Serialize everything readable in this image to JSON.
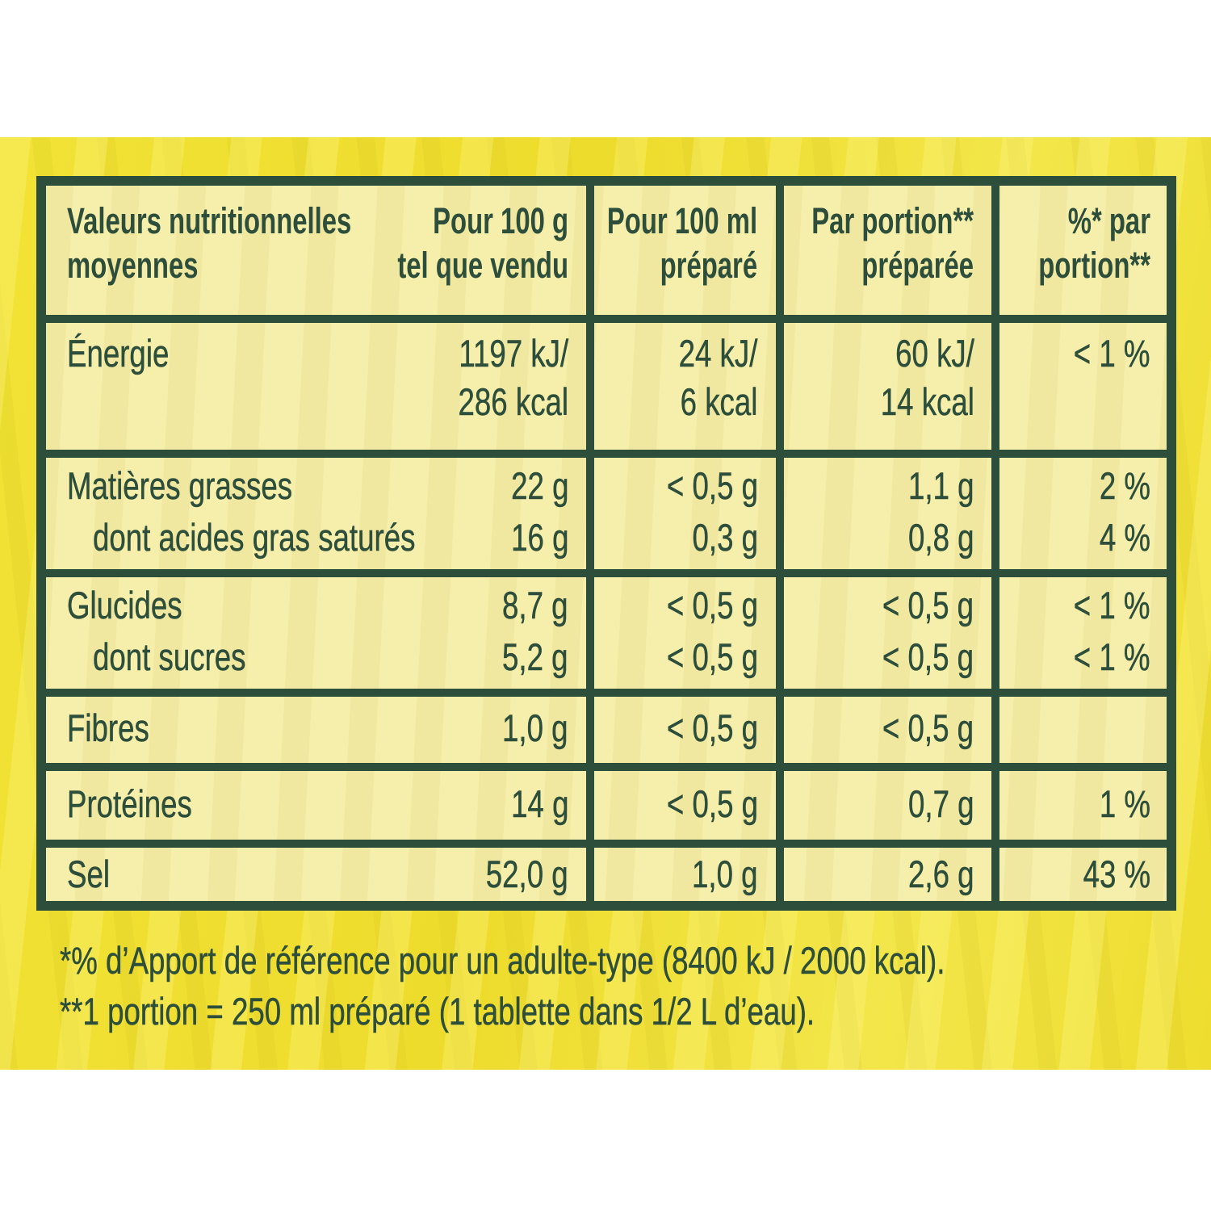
{
  "colors": {
    "band": "#eedd2e",
    "table_bg": "#f6efab",
    "green": "#2d4e3b"
  },
  "table": {
    "header": {
      "title": "Valeurs nutritionnelles\nmoyennes",
      "per100g": "Pour 100 g\ntel que vendu",
      "per100ml": "Pour 100 ml\npréparé",
      "perPortion": "Par portion**\npréparée",
      "pctPortion": "%* par\nportion**"
    },
    "rows": [
      {
        "id": "energie",
        "lines": [
          {
            "label": "Énergie",
            "value": "1197 kJ/"
          },
          {
            "label": "",
            "value": "286 kcal"
          }
        ],
        "per100ml": "24 kJ/\n6 kcal",
        "perPortion": "60 kJ/\n14 kcal",
        "pctPortion": "< 1 %"
      },
      {
        "id": "matieres-grasses",
        "lines": [
          {
            "label": "Matières grasses",
            "value": "22 g"
          },
          {
            "label": "dont acides gras saturés",
            "value": "16 g"
          }
        ],
        "per100ml": "< 0,5 g\n0,3 g",
        "perPortion": "1,1 g\n0,8 g",
        "pctPortion": "2 %\n4 %"
      },
      {
        "id": "glucides",
        "lines": [
          {
            "label": "Glucides",
            "value": "8,7 g"
          },
          {
            "label": "dont sucres",
            "value": "5,2 g"
          }
        ],
        "per100ml": "< 0,5 g\n< 0,5 g",
        "perPortion": "< 0,5 g\n< 0,5 g",
        "pctPortion": "< 1 %\n< 1 %"
      },
      {
        "id": "fibres",
        "lines": [
          {
            "label": "Fibres",
            "value": "1,0 g"
          }
        ],
        "per100ml": "< 0,5 g",
        "perPortion": "< 0,5 g",
        "pctPortion": ""
      },
      {
        "id": "proteines",
        "lines": [
          {
            "label": "Protéines",
            "value": "14 g"
          }
        ],
        "per100ml": "< 0,5 g",
        "perPortion": "0,7 g",
        "pctPortion": "1 %"
      },
      {
        "id": "sel",
        "lines": [
          {
            "label": "Sel",
            "value": "52,0 g"
          }
        ],
        "per100ml": "1,0 g",
        "perPortion": "2,6 g",
        "pctPortion": "43 %"
      }
    ]
  },
  "footnotes": [
    "*% d’Apport de référence pour un adulte-type (8400 kJ / 2000 kcal).",
    "**1 portion = 250 ml préparé (1 tablette dans 1/2 L d’eau)."
  ]
}
